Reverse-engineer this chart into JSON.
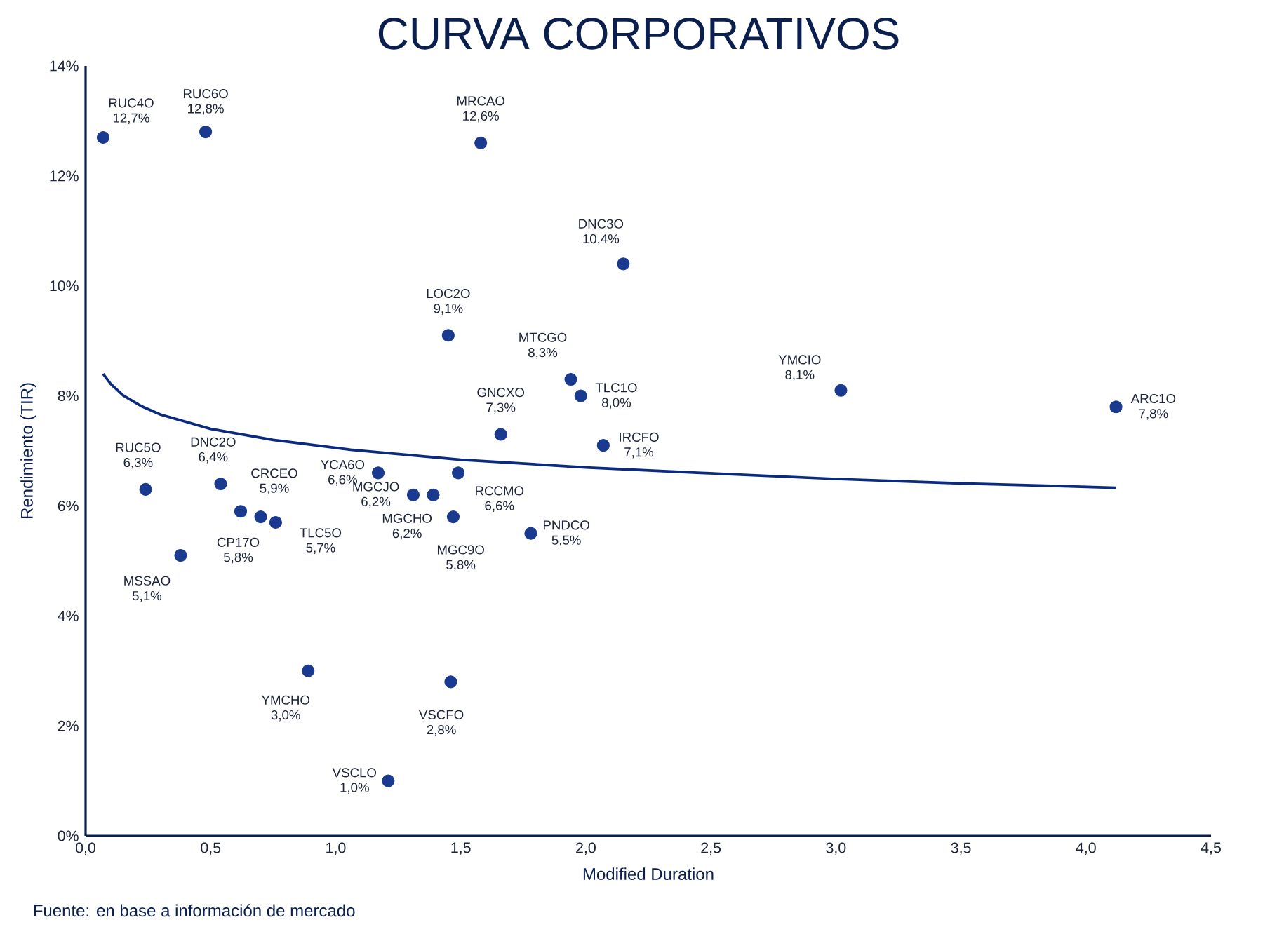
{
  "chart_data": {
    "type": "scatter",
    "title": "CURVA CORPORATIVOS",
    "xlabel": "Modified Duration",
    "ylabel": "Rendimiento (TIR)",
    "annotations": [
      "Fuente: en base a información de mercado"
    ],
    "marker": "circle",
    "xlim": [
      0,
      4.5
    ],
    "ylim": [
      0,
      14
    ],
    "xticks": [
      {
        "value": 0,
        "label": "0,0"
      },
      {
        "value": 0.5,
        "label": "0,5"
      },
      {
        "value": 1,
        "label": "1,0"
      },
      {
        "value": 1.5,
        "label": "1,5"
      },
      {
        "value": 2,
        "label": "2,0"
      },
      {
        "value": 2.5,
        "label": "2,5"
      },
      {
        "value": 3,
        "label": "3,0"
      },
      {
        "value": 3.5,
        "label": "3,5"
      },
      {
        "value": 4,
        "label": "4,0"
      },
      {
        "value": 4.5,
        "label": "4,5"
      }
    ],
    "yticks": [
      {
        "value": 0,
        "label": "0%"
      },
      {
        "value": 2,
        "label": "2%"
      },
      {
        "value": 4,
        "label": "4%"
      },
      {
        "value": 6,
        "label": "6%"
      },
      {
        "value": 8,
        "label": "8%"
      },
      {
        "value": 10,
        "label": "10%"
      },
      {
        "value": 12,
        "label": "12%"
      },
      {
        "value": 14,
        "label": "14%"
      }
    ],
    "series": [
      {
        "name": "RUC4O",
        "color": "#1a3a8f",
        "x": [
          0.07
        ],
        "values": [
          12.7
        ],
        "value_labels": [
          "12,7%"
        ]
      },
      {
        "name": "RUC6O",
        "color": "#1a3a8f",
        "x": [
          0.48
        ],
        "values": [
          12.8
        ],
        "value_labels": [
          "12,8%"
        ]
      },
      {
        "name": "MRCAO",
        "color": "#1a3a8f",
        "x": [
          1.58
        ],
        "values": [
          12.6
        ],
        "value_labels": [
          "12,6%"
        ]
      },
      {
        "name": "DNC3O",
        "color": "#1a3a8f",
        "x": [
          2.15
        ],
        "values": [
          10.4
        ],
        "value_labels": [
          "10,4%"
        ]
      },
      {
        "name": "LOC2O",
        "color": "#1a3a8f",
        "x": [
          1.45
        ],
        "values": [
          9.1
        ],
        "value_labels": [
          "9,1%"
        ]
      },
      {
        "name": "MTCGO",
        "color": "#1a3a8f",
        "x": [
          1.94
        ],
        "values": [
          8.3
        ],
        "value_labels": [
          "8,3%"
        ]
      },
      {
        "name": "TLC1O",
        "color": "#1a3a8f",
        "x": [
          1.98
        ],
        "values": [
          8.0
        ],
        "value_labels": [
          "8,0%"
        ]
      },
      {
        "name": "GNCXO",
        "color": "#1a3a8f",
        "x": [
          1.66
        ],
        "values": [
          7.3
        ],
        "value_labels": [
          "7,3%"
        ]
      },
      {
        "name": "IRCFO",
        "color": "#1a3a8f",
        "x": [
          2.07
        ],
        "values": [
          7.1
        ],
        "value_labels": [
          "7,1%"
        ]
      },
      {
        "name": "YMCIO",
        "color": "#1a3a8f",
        "x": [
          3.02
        ],
        "values": [
          8.1
        ],
        "value_labels": [
          "8,1%"
        ]
      },
      {
        "name": "ARC1O",
        "color": "#1a3a8f",
        "x": [
          4.12
        ],
        "values": [
          7.8
        ],
        "value_labels": [
          "7,8%"
        ]
      },
      {
        "name": "RUC5O",
        "color": "#1a3a8f",
        "x": [
          0.24
        ],
        "values": [
          6.3
        ],
        "value_labels": [
          "6,3%"
        ]
      },
      {
        "name": "DNC2O",
        "color": "#1a3a8f",
        "x": [
          0.54
        ],
        "values": [
          6.4
        ],
        "value_labels": [
          "6,4%"
        ]
      },
      {
        "name": "CRCEO",
        "color": "#1a3a8f",
        "x": [
          0.62
        ],
        "values": [
          5.9
        ],
        "value_labels": [
          "5,9%"
        ]
      },
      {
        "name": "CP17O",
        "color": "#1a3a8f",
        "x": [
          0.7
        ],
        "values": [
          5.8
        ],
        "value_labels": [
          "5,8%"
        ]
      },
      {
        "name": "TLC5O",
        "color": "#1a3a8f",
        "x": [
          0.76
        ],
        "values": [
          5.7
        ],
        "value_labels": [
          "5,7%"
        ]
      },
      {
        "name": "MSSAO",
        "color": "#1a3a8f",
        "x": [
          0.38
        ],
        "values": [
          5.1
        ],
        "value_labels": [
          "5,1%"
        ]
      },
      {
        "name": "YCA6O",
        "color": "#1a3a8f",
        "x": [
          1.17
        ],
        "values": [
          6.6
        ],
        "value_labels": [
          "6,6%"
        ]
      },
      {
        "name": "MGCJO",
        "color": "#1a3a8f",
        "x": [
          1.31
        ],
        "values": [
          6.2
        ],
        "value_labels": [
          "6,2%"
        ]
      },
      {
        "name": "MGCHO",
        "color": "#1a3a8f",
        "x": [
          1.39
        ],
        "values": [
          6.2
        ],
        "value_labels": [
          "6,2%"
        ]
      },
      {
        "name": "RCCMO",
        "color": "#1a3a8f",
        "x": [
          1.49
        ],
        "values": [
          6.6
        ],
        "value_labels": [
          "6,6%"
        ]
      },
      {
        "name": "MGC9O",
        "color": "#1a3a8f",
        "x": [
          1.47
        ],
        "values": [
          5.8
        ],
        "value_labels": [
          "5,8%"
        ]
      },
      {
        "name": "PNDCO",
        "color": "#1a3a8f",
        "x": [
          1.78
        ],
        "values": [
          5.5
        ],
        "value_labels": [
          "5,5%"
        ]
      },
      {
        "name": "YMCHO",
        "color": "#1a3a8f",
        "x": [
          0.89
        ],
        "values": [
          3.0
        ],
        "value_labels": [
          "3,0%"
        ]
      },
      {
        "name": "VSCFO",
        "color": "#1a3a8f",
        "x": [
          1.46
        ],
        "values": [
          2.8
        ],
        "value_labels": [
          "2,8%"
        ]
      },
      {
        "name": "VSCLO",
        "color": "#1a3a8f",
        "x": [
          1.21
        ],
        "values": [
          1.0
        ],
        "value_labels": [
          "1,0%"
        ]
      },
      {
        "type": "line",
        "marker": "none",
        "color": "#0a2a80",
        "x": [
          0.07,
          0.1,
          0.15,
          0.22,
          0.3,
          0.5,
          0.75,
          1.06,
          1.5,
          2.0,
          2.46,
          3.0,
          3.5,
          4.12
        ],
        "values": [
          8.4,
          8.22,
          8.01,
          7.82,
          7.66,
          7.4,
          7.2,
          7.02,
          6.84,
          6.7,
          6.6,
          6.49,
          6.41,
          6.33
        ]
      }
    ]
  }
}
